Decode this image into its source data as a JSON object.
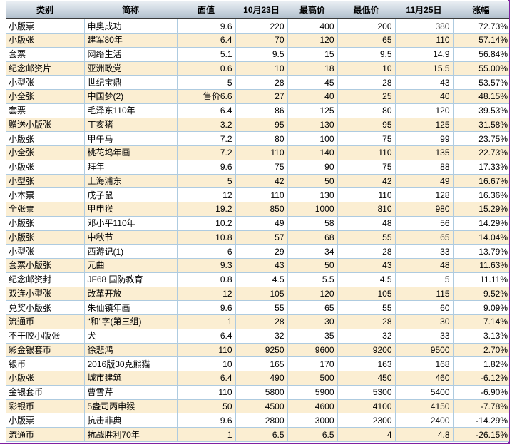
{
  "table": {
    "columns": [
      {
        "key": "category",
        "label": "类别",
        "align": "left"
      },
      {
        "key": "name",
        "label": "简称",
        "align": "left"
      },
      {
        "key": "face-value",
        "label": "面值",
        "align": "right"
      },
      {
        "key": "oct23",
        "label": "10月23日",
        "align": "right"
      },
      {
        "key": "high",
        "label": "最高价",
        "align": "right"
      },
      {
        "key": "low",
        "label": "最低价",
        "align": "right"
      },
      {
        "key": "nov25",
        "label": "11月25日",
        "align": "right"
      },
      {
        "key": "change",
        "label": "涨幅",
        "align": "right"
      }
    ],
    "rows": [
      [
        "小版票",
        "申奥成功",
        "9.6",
        "220",
        "400",
        "200",
        "380",
        "72.73%"
      ],
      [
        "小版张",
        "建军80年",
        "6.4",
        "70",
        "120",
        "65",
        "110",
        "57.14%"
      ],
      [
        "套票",
        "网络生活",
        "5.1",
        "9.5",
        "15",
        "9.5",
        "14.9",
        "56.84%"
      ],
      [
        "纪念邮资片",
        "亚洲政党",
        "0.6",
        "10",
        "18",
        "10",
        "15.5",
        "55.00%"
      ],
      [
        "小型张",
        "世纪宝鼎",
        "5",
        "28",
        "45",
        "28",
        "43",
        "53.57%"
      ],
      [
        "小全张",
        "中国梦(2)",
        "售价6.6",
        "27",
        "40",
        "25",
        "40",
        "48.15%"
      ],
      [
        "套票",
        "毛泽东110年",
        "6.4",
        "86",
        "125",
        "80",
        "120",
        "39.53%"
      ],
      [
        "赠送小版张",
        "丁亥猪",
        "3.2",
        "95",
        "130",
        "95",
        "125",
        "31.58%"
      ],
      [
        "小版张",
        "甲午马",
        "7.2",
        "80",
        "100",
        "75",
        "99",
        "23.75%"
      ],
      [
        "小全张",
        "桃花坞年画",
        "7.2",
        "110",
        "140",
        "110",
        "135",
        "22.73%"
      ],
      [
        "小版张",
        "拜年",
        "9.6",
        "75",
        "90",
        "75",
        "88",
        "17.33%"
      ],
      [
        "小型张",
        "上海浦东",
        "5",
        "42",
        "50",
        "42",
        "49",
        "16.67%"
      ],
      [
        "小本票",
        "戊子鼠",
        "12",
        "110",
        "130",
        "110",
        "128",
        "16.36%"
      ],
      [
        "全张票",
        "甲申猴",
        "19.2",
        "850",
        "1000",
        "810",
        "980",
        "15.29%"
      ],
      [
        "小版张",
        "邓小平110年",
        "10.2",
        "49",
        "58",
        "48",
        "56",
        "14.29%"
      ],
      [
        "小版张",
        "中秋节",
        "10.8",
        "57",
        "68",
        "55",
        "65",
        "14.04%"
      ],
      [
        "小型张",
        "西游记(1)",
        "6",
        "29",
        "34",
        "28",
        "33",
        "13.79%"
      ],
      [
        "套票小版张",
        "元曲",
        "9.3",
        "43",
        "50",
        "43",
        "48",
        "11.63%"
      ],
      [
        "纪念邮资封",
        "JF68 国防教育",
        "0.8",
        "4.5",
        "5.5",
        "4.5",
        "5",
        "11.11%"
      ],
      [
        "双连小型张",
        "改革开放",
        "12",
        "105",
        "120",
        "105",
        "115",
        "9.52%"
      ],
      [
        "兑奖小版张",
        "朱仙镇年画",
        "9.6",
        "55",
        "65",
        "55",
        "60",
        "9.09%"
      ],
      [
        "流通币",
        "“和”字(第三组)",
        "1",
        "28",
        "30",
        "28",
        "30",
        "7.14%"
      ],
      [
        "不干胶小版张",
        "犬",
        "6.4",
        "32",
        "35",
        "32",
        "33",
        "3.13%"
      ],
      [
        "彩金银套币",
        "徐悲鸿",
        "110",
        "9250",
        "9600",
        "9200",
        "9500",
        "2.70%"
      ],
      [
        "银币",
        "2016版30克熊猫",
        "10",
        "165",
        "170",
        "163",
        "168",
        "1.82%"
      ],
      [
        "小版张",
        "城市建筑",
        "6.4",
        "490",
        "500",
        "450",
        "460",
        "-6.12%"
      ],
      [
        "金银套币",
        "曹雪芹",
        "110",
        "5800",
        "5900",
        "5300",
        "5400",
        "-6.90%"
      ],
      [
        "彩银币",
        "5盎司丙申猴",
        "50",
        "4500",
        "4600",
        "4100",
        "4150",
        "-7.78%"
      ],
      [
        "小版票",
        "抗击非典",
        "9.6",
        "2800",
        "3000",
        "2300",
        "2400",
        "-14.29%"
      ],
      [
        "流通币",
        "抗战胜利70年",
        "1",
        "6.5",
        "6.5",
        "4",
        "4.8",
        "-26.15%"
      ]
    ]
  },
  "colors": {
    "frame_border": "#8020A0",
    "header_gradient_top": "#E9EEF3",
    "header_gradient_bottom": "#B2C0CD",
    "header_underline": "#3A3A3A",
    "grid_border": "#AECBE0",
    "row_alt_background": "#FBEED2",
    "text": "#000000"
  }
}
